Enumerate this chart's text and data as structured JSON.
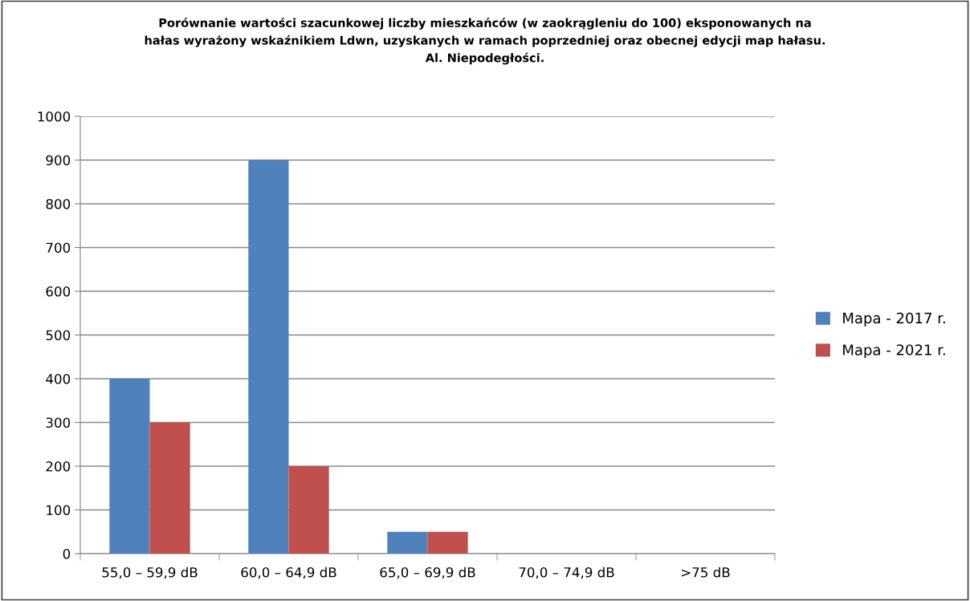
{
  "chart_data": {
    "type": "bar",
    "title": "Porównanie wartości szacunkowej liczby mieszkańców (w zaokrągleniu do 100) eksponowanych na\nhałas wyrażony wskaźnikiem Ldwn, uzyskanych w ramach poprzedniej oraz obecnej edycji map hałasu.\nAl. Niepodegłości.",
    "categories": [
      "55,0 – 59,9 dB",
      "60,0 – 64,9 dB",
      "65,0 – 69,9 dB",
      "70,0 – 74,9 dB",
      ">75 dB"
    ],
    "series": [
      {
        "name": "Mapa - 2017 r.",
        "color": "#4f81bd",
        "values": [
          400,
          900,
          50,
          0,
          0
        ]
      },
      {
        "name": "Mapa - 2021 r.",
        "color": "#c0504d",
        "values": [
          300,
          200,
          50,
          0,
          0
        ]
      }
    ],
    "ylim": [
      0,
      1000
    ],
    "yticks": [
      0,
      100,
      200,
      300,
      400,
      500,
      600,
      700,
      800,
      900,
      1000
    ],
    "grid": "y",
    "legend": "right"
  }
}
